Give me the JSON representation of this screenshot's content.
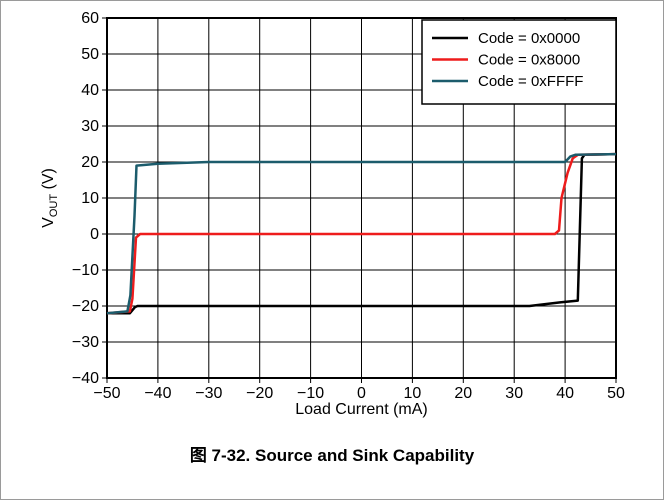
{
  "figure": {
    "caption": "图 7-32. Source and Sink Capability"
  },
  "chart_data": {
    "type": "line",
    "title": "",
    "xlabel": "Load Current (mA)",
    "ylabel_main": "V",
    "ylabel_sub": "OUT",
    "ylabel_unit": " (V)",
    "xlim": [
      -50,
      50
    ],
    "ylim": [
      -40,
      60
    ],
    "xticks": [
      -50,
      -40,
      -30,
      -20,
      -10,
      0,
      10,
      20,
      30,
      40,
      50
    ],
    "yticks": [
      -40,
      -30,
      -20,
      -10,
      0,
      10,
      20,
      30,
      40,
      50,
      60
    ],
    "grid": true,
    "legend_position": "top-right",
    "series": [
      {
        "name": "Code = 0x0000",
        "color": "#000000",
        "points": [
          [
            -50,
            -22
          ],
          [
            -45.5,
            -22
          ],
          [
            -44.5,
            -20.3
          ],
          [
            -44,
            -20
          ],
          [
            -30,
            -20
          ],
          [
            0,
            -20
          ],
          [
            33,
            -20
          ],
          [
            39,
            -19
          ],
          [
            42.5,
            -18.5
          ],
          [
            43.3,
            21
          ],
          [
            43.8,
            22
          ],
          [
            50,
            22.2
          ]
        ]
      },
      {
        "name": "Code = 0x8000",
        "color": "#ee1c1c",
        "points": [
          [
            -50,
            -22
          ],
          [
            -45.5,
            -21.5
          ],
          [
            -45,
            -18
          ],
          [
            -44.3,
            -1
          ],
          [
            -43.5,
            0
          ],
          [
            -30,
            0
          ],
          [
            0,
            0
          ],
          [
            38,
            0
          ],
          [
            38.8,
            1
          ],
          [
            39.3,
            10
          ],
          [
            40.5,
            17
          ],
          [
            41.5,
            21
          ],
          [
            42.5,
            22
          ],
          [
            50,
            22.2
          ]
        ]
      },
      {
        "name": "Code = 0xFFFF",
        "color": "#1c5c6c",
        "points": [
          [
            -50,
            -22
          ],
          [
            -46,
            -21.5
          ],
          [
            -45.4,
            -17
          ],
          [
            -44.6,
            5
          ],
          [
            -44.2,
            19
          ],
          [
            -40,
            19.5
          ],
          [
            -30,
            20
          ],
          [
            0,
            20
          ],
          [
            20,
            20
          ],
          [
            40,
            20
          ],
          [
            41,
            21.5
          ],
          [
            42,
            22
          ],
          [
            50,
            22.2
          ]
        ]
      }
    ]
  }
}
